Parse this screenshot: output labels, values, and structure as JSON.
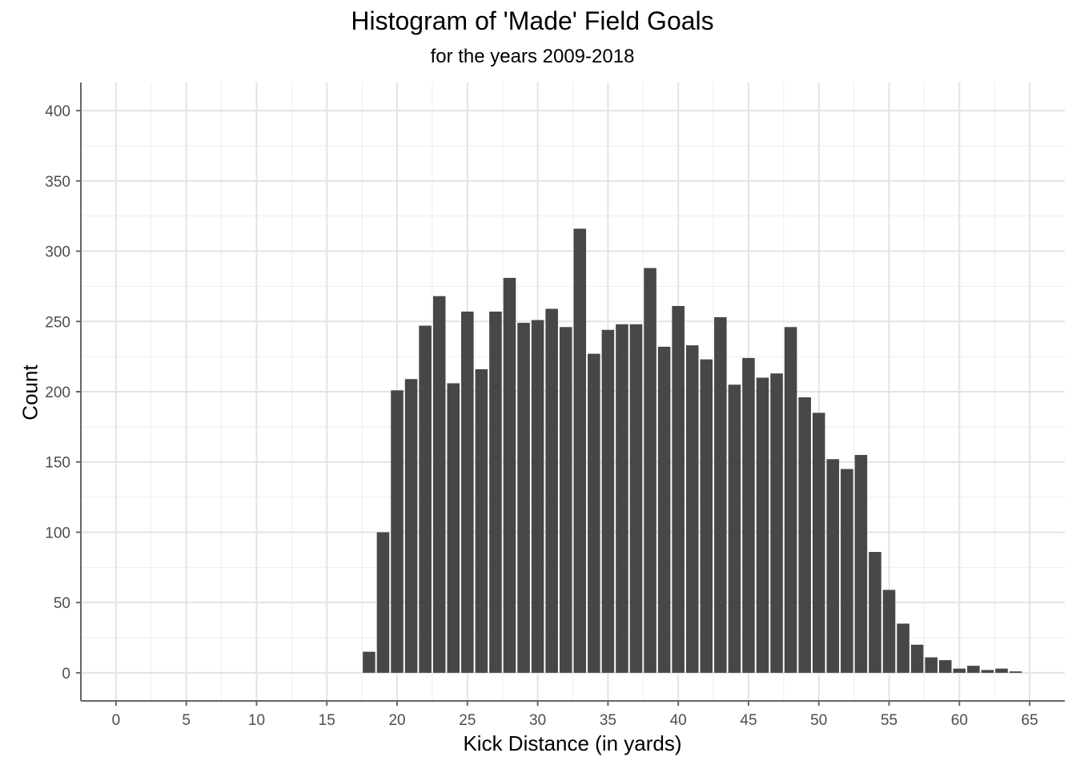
{
  "chart_data": {
    "type": "bar",
    "title": "Histogram of 'Made' Field Goals",
    "subtitle": "for the years 2009-2018",
    "xlabel": "Kick Distance (in yards)",
    "ylabel": "Count",
    "xlim": [
      -2.5,
      67.5
    ],
    "ylim": [
      -20,
      420
    ],
    "x_ticks": [
      0,
      5,
      10,
      15,
      20,
      25,
      30,
      35,
      40,
      45,
      50,
      55,
      60,
      65
    ],
    "y_ticks": [
      0,
      50,
      100,
      150,
      200,
      250,
      300,
      350,
      400
    ],
    "grid": true,
    "bar_color": "#474747",
    "x": [
      18,
      19,
      20,
      21,
      22,
      23,
      24,
      25,
      26,
      27,
      28,
      29,
      30,
      31,
      32,
      33,
      34,
      35,
      36,
      37,
      38,
      39,
      40,
      41,
      42,
      43,
      44,
      45,
      46,
      47,
      48,
      49,
      50,
      51,
      52,
      53,
      54,
      55,
      56,
      57,
      58,
      59,
      60,
      61,
      62,
      63,
      64
    ],
    "values": [
      15,
      100,
      201,
      209,
      247,
      268,
      206,
      257,
      216,
      257,
      281,
      249,
      251,
      259,
      246,
      316,
      227,
      244,
      248,
      248,
      288,
      232,
      261,
      233,
      223,
      253,
      205,
      224,
      210,
      213,
      246,
      196,
      185,
      152,
      145,
      155,
      86,
      59,
      35,
      20,
      11,
      9,
      3,
      5,
      2,
      3,
      1
    ]
  }
}
